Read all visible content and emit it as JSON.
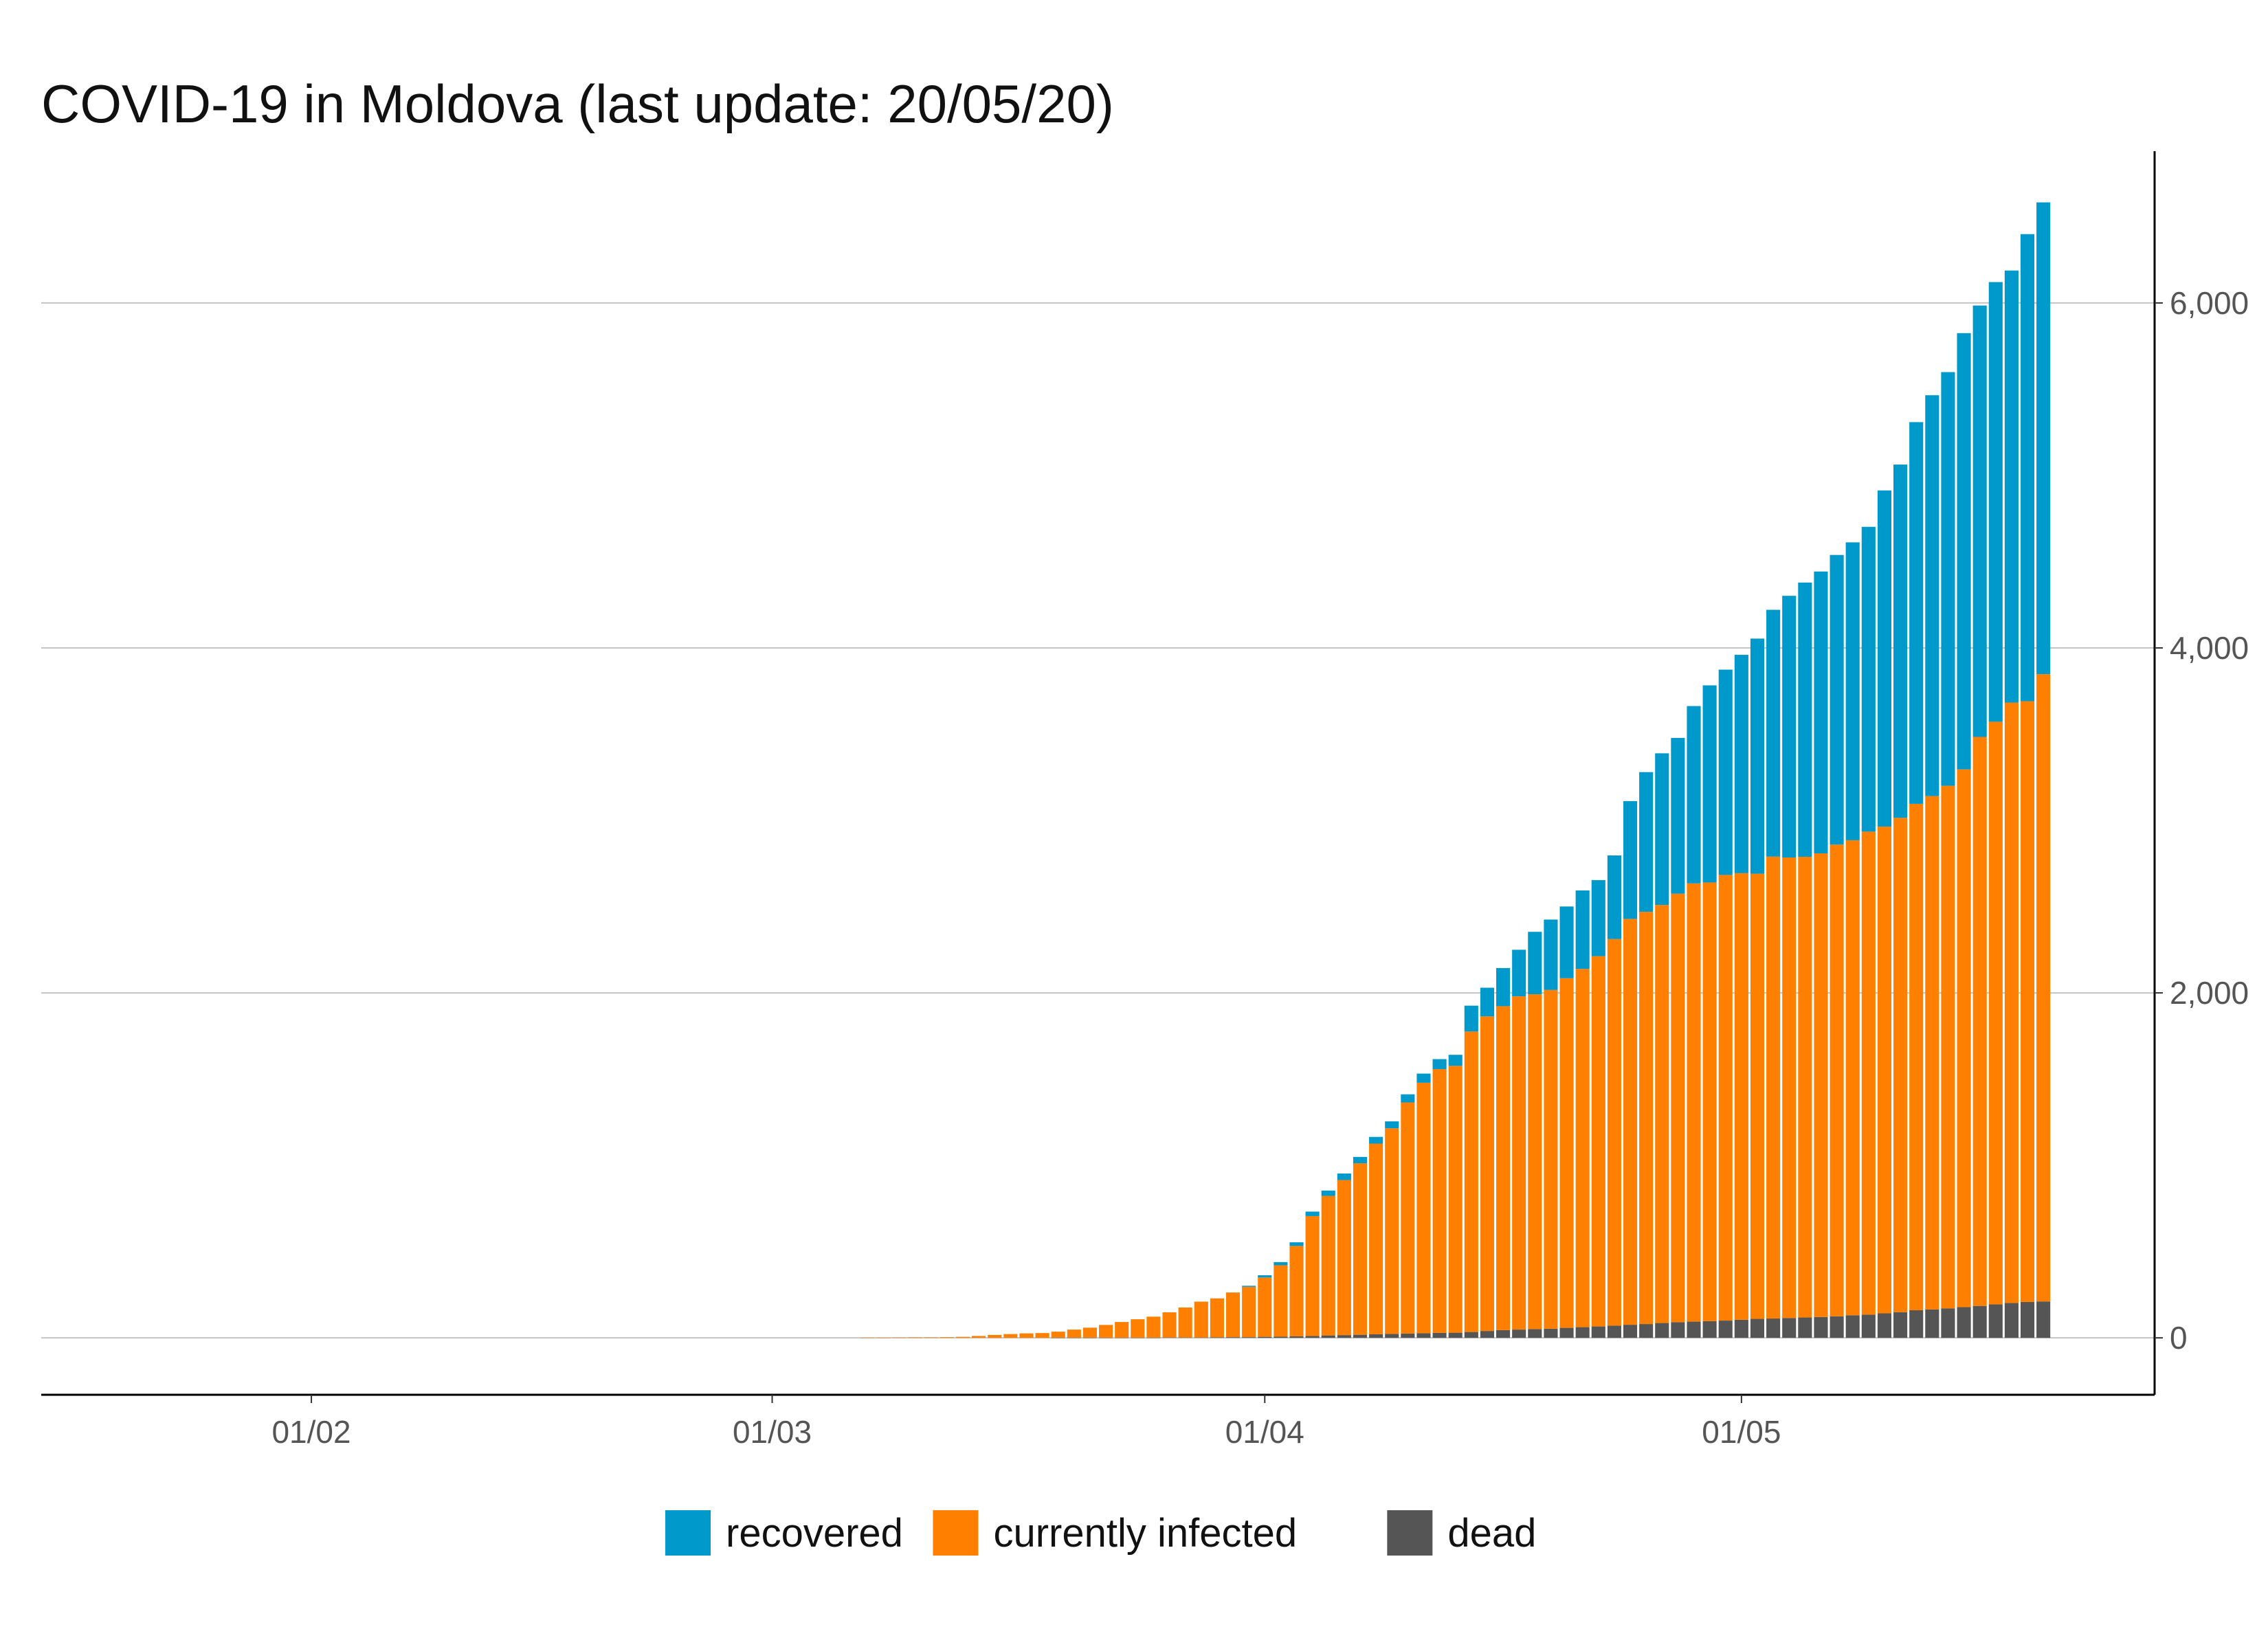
{
  "chart_data": {
    "type": "bar",
    "stacked": true,
    "title": "COVID-19 in Moldova (last update: 20/05/20)",
    "xlabel": "",
    "ylabel": "",
    "x_range": [
      "2020-01-15",
      "2020-05-27"
    ],
    "ylim": [
      -330,
      6880
    ],
    "y_ticks": [
      0,
      2000,
      4000,
      6000
    ],
    "y_tick_labels": [
      "0",
      "2,000",
      "4,000",
      "6,000"
    ],
    "x_ticks": [
      "2020-02-01",
      "2020-03-01",
      "2020-04-01",
      "2020-05-01"
    ],
    "x_tick_labels": [
      "01/02",
      "01/03",
      "01/04",
      "01/05"
    ],
    "y_axis_position": "right",
    "grid": "horizontal",
    "legend_position": "bottom",
    "colors": {
      "recovered": "#0099CC",
      "currently_infected": "#FF8000",
      "dead": "#555555"
    },
    "x": [
      "2020-03-07",
      "2020-03-08",
      "2020-03-09",
      "2020-03-10",
      "2020-03-11",
      "2020-03-12",
      "2020-03-13",
      "2020-03-14",
      "2020-03-15",
      "2020-03-16",
      "2020-03-17",
      "2020-03-18",
      "2020-03-19",
      "2020-03-20",
      "2020-03-21",
      "2020-03-22",
      "2020-03-23",
      "2020-03-24",
      "2020-03-25",
      "2020-03-26",
      "2020-03-27",
      "2020-03-28",
      "2020-03-29",
      "2020-03-30",
      "2020-03-31",
      "2020-04-01",
      "2020-04-02",
      "2020-04-03",
      "2020-04-04",
      "2020-04-05",
      "2020-04-06",
      "2020-04-07",
      "2020-04-08",
      "2020-04-09",
      "2020-04-10",
      "2020-04-11",
      "2020-04-12",
      "2020-04-13",
      "2020-04-14",
      "2020-04-15",
      "2020-04-16",
      "2020-04-17",
      "2020-04-18",
      "2020-04-19",
      "2020-04-20",
      "2020-04-21",
      "2020-04-22",
      "2020-04-23",
      "2020-04-24",
      "2020-04-25",
      "2020-04-26",
      "2020-04-27",
      "2020-04-28",
      "2020-04-29",
      "2020-04-30",
      "2020-05-01",
      "2020-05-02",
      "2020-05-03",
      "2020-05-04",
      "2020-05-05",
      "2020-05-06",
      "2020-05-07",
      "2020-05-08",
      "2020-05-09",
      "2020-05-10",
      "2020-05-11",
      "2020-05-12",
      "2020-05-13",
      "2020-05-14",
      "2020-05-15",
      "2020-05-16",
      "2020-05-17",
      "2020-05-18",
      "2020-05-19",
      "2020-05-20"
    ],
    "series": [
      {
        "name": "dead",
        "values": [
          0,
          0,
          0,
          0,
          0,
          0,
          0,
          0,
          0,
          0,
          0,
          0,
          1,
          1,
          1,
          1,
          1,
          1,
          1,
          2,
          2,
          2,
          3,
          4,
          4,
          6,
          7,
          9,
          11,
          14,
          16,
          18,
          21,
          23,
          25,
          27,
          29,
          30,
          34,
          40,
          45,
          48,
          51,
          53,
          58,
          62,
          66,
          71,
          76,
          80,
          86,
          91,
          94,
          97,
          100,
          105,
          110,
          112,
          115,
          118,
          121,
          125,
          131,
          135,
          142,
          149,
          160,
          165,
          171,
          178,
          185,
          194,
          202,
          208,
          211
        ]
      },
      {
        "name": "currently infected",
        "values": [
          1,
          1,
          2,
          3,
          3,
          4,
          6,
          11,
          17,
          22,
          26,
          28,
          35,
          47,
          58,
          74,
          91,
          107,
          122,
          146,
          174,
          208,
          226,
          259,
          292,
          344,
          414,
          524,
          695,
          809,
          899,
          994,
          1105,
          1192,
          1340,
          1452,
          1529,
          1547,
          1742,
          1824,
          1878,
          1932,
          1941,
          1964,
          2027,
          2077,
          2147,
          2241,
          2353,
          2390,
          2424,
          2484,
          2541,
          2543,
          2584,
          2589,
          2581,
          2678,
          2670,
          2671,
          2688,
          2735,
          2754,
          2800,
          2822,
          2866,
          2936,
          2976,
          3030,
          3118,
          3299,
          3378,
          3481,
          3483,
          3637
        ]
      },
      {
        "name": "recovered",
        "values": [
          0,
          0,
          0,
          0,
          0,
          0,
          0,
          0,
          0,
          0,
          0,
          0,
          0,
          0,
          0,
          0,
          0,
          0,
          0,
          0,
          0,
          0,
          0,
          0,
          6,
          13,
          18,
          21,
          26,
          31,
          38,
          37,
          39,
          40,
          47,
          53,
          58,
          64,
          150,
          166,
          221,
          270,
          362,
          408,
          416,
          455,
          441,
          485,
          683,
          810,
          879,
          903,
          1028,
          1143,
          1190,
          1266,
          1363,
          1431,
          1517,
          1590,
          1634,
          1679,
          1727,
          1767,
          1949,
          2048,
          2213,
          2324,
          2398,
          2529,
          2501,
          2549,
          2505,
          2708,
          2735
        ]
      }
    ]
  },
  "legend": {
    "items": [
      {
        "label": "recovered",
        "color": "#0099CC"
      },
      {
        "label": "currently infected",
        "color": "#FF8000"
      },
      {
        "label": "dead",
        "color": "#555555"
      }
    ]
  }
}
